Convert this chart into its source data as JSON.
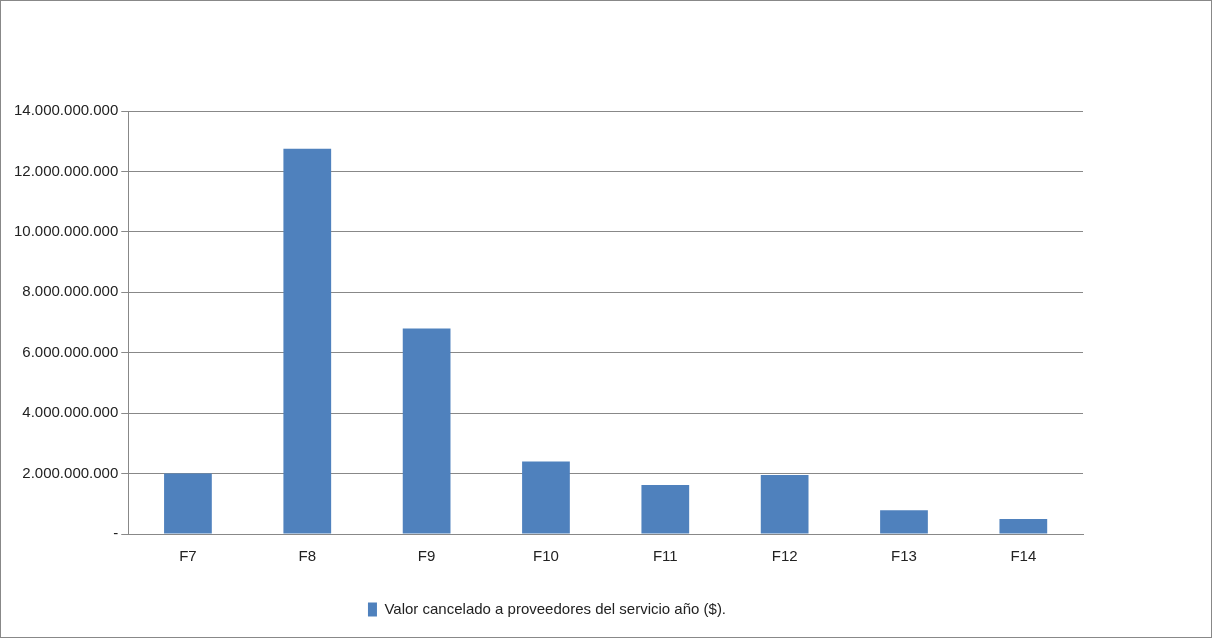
{
  "chart_data": {
    "type": "bar",
    "categories": [
      "F7",
      "F8",
      "F9",
      "F10",
      "F11",
      "F12",
      "F13",
      "F14"
    ],
    "series": [
      {
        "name": "Valor cancelado a proveedores del servicio año ($).",
        "color": "#4f81bd",
        "values": [
          2000000000,
          12750000000,
          6800000000,
          2400000000,
          1620000000,
          1950000000,
          790000000,
          500000000
        ]
      }
    ],
    "ylim": [
      0,
      14000000000
    ],
    "yticks": [
      {
        "value": 0,
        "label": "-"
      },
      {
        "value": 2000000000,
        "label": "2.000.000.000"
      },
      {
        "value": 4000000000,
        "label": "4.000.000.000"
      },
      {
        "value": 6000000000,
        "label": "6.000.000.000"
      },
      {
        "value": 8000000000,
        "label": "8.000.000.000"
      },
      {
        "value": 10000000000,
        "label": "10.000.000.000"
      },
      {
        "value": 12000000000,
        "label": "12.000.000.000"
      },
      {
        "value": 14000000000,
        "label": "14.000.000.000"
      }
    ],
    "grid": "y",
    "legend": "bottom"
  }
}
